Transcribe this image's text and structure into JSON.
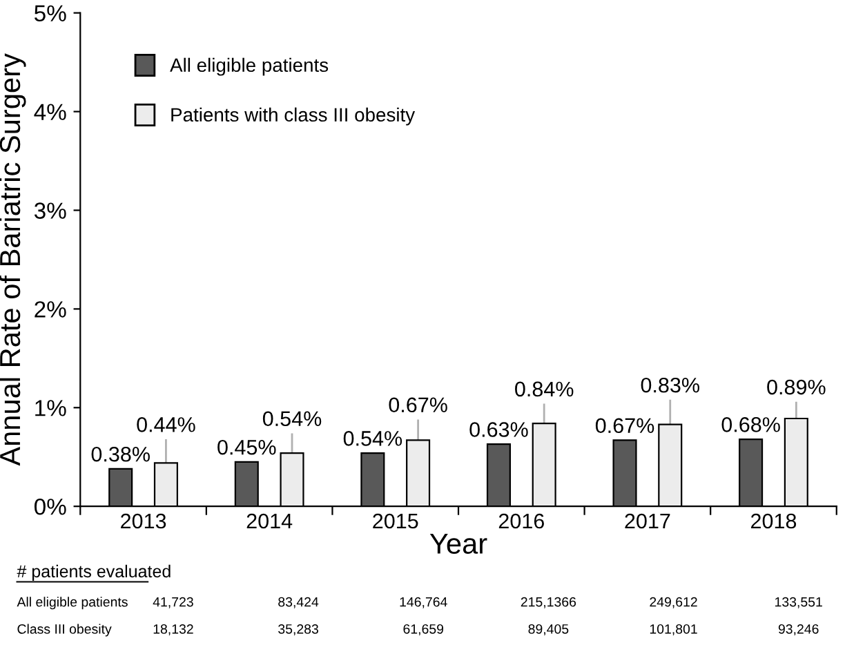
{
  "chart_data": {
    "type": "bar",
    "xlabel": "Year",
    "ylabel": "Annual Rate of Bariatric Surgery",
    "categories": [
      "2013",
      "2014",
      "2015",
      "2016",
      "2017",
      "2018"
    ],
    "series": [
      {
        "name": "All eligible patients",
        "color": "#595959",
        "values": [
          0.38,
          0.45,
          0.54,
          0.63,
          0.67,
          0.68
        ],
        "value_labels": [
          "0.38%",
          "0.45%",
          "0.54%",
          "0.63%",
          "0.67%",
          "0.68%"
        ]
      },
      {
        "name": "Patients with class III obesity",
        "color": "#ececec",
        "values": [
          0.44,
          0.54,
          0.67,
          0.84,
          0.83,
          0.89
        ],
        "value_labels": [
          "0.44%",
          "0.54%",
          "0.67%",
          "0.84%",
          "0.83%",
          "0.89%"
        ],
        "errors": [
          [
            0.44,
            0.68
          ],
          [
            0.54,
            0.74
          ],
          [
            0.67,
            0.88
          ],
          [
            0.84,
            1.04
          ],
          [
            0.83,
            1.08
          ],
          [
            0.89,
            1.06
          ]
        ]
      }
    ],
    "ylim": [
      0,
      5
    ],
    "yticks": [
      {
        "value": 0,
        "label": "0%"
      },
      {
        "value": 1,
        "label": "1%"
      },
      {
        "value": 2,
        "label": "2%"
      },
      {
        "value": 3,
        "label": "3%"
      },
      {
        "value": 4,
        "label": "4%"
      },
      {
        "value": 5,
        "label": "5%"
      }
    ],
    "grid": false,
    "legend": "top left",
    "annotations": [
      "# patients evaluated",
      "All eligible patients",
      "41,723",
      "83,424",
      "146,764",
      "215,1366",
      "249,612",
      "133,551",
      "Class III obesity",
      "18,132",
      "35,283",
      "61,659",
      "89,405",
      "101,801",
      "93,246"
    ]
  }
}
